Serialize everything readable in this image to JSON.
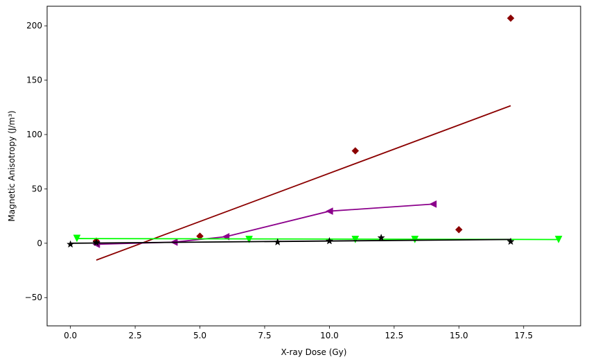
{
  "chart_data": {
    "type": "scatter",
    "xlabel": "X-ray Dose (Gy)",
    "ylabel": "Magnetic Anisotropy (J/m³)",
    "xlim": [
      -0.9,
      19.7
    ],
    "ylim": [
      -76,
      218
    ],
    "xticks": [
      0.0,
      2.5,
      5.0,
      7.5,
      10.0,
      12.5,
      15.0,
      17.5
    ],
    "xtick_labels": [
      "0.0",
      "2.5",
      "5.0",
      "7.5",
      "10.0",
      "12.5",
      "15.0",
      "17.5"
    ],
    "yticks": [
      -50,
      0,
      50,
      100,
      150,
      200
    ],
    "ytick_labels": [
      "−50",
      "0",
      "50",
      "100",
      "150",
      "200"
    ],
    "grid": false,
    "series": [
      {
        "color": "#8b0000",
        "marker": "diamond",
        "connected": false,
        "points": [
          [
            1,
            2
          ],
          [
            5,
            6.5
          ],
          [
            11,
            85
          ],
          [
            15,
            12.5
          ],
          [
            17,
            207
          ]
        ],
        "fit": [
          [
            1,
            -15.5
          ],
          [
            17,
            126.5
          ]
        ]
      },
      {
        "color": "#8b008b",
        "marker": "triangle-left",
        "connected": true,
        "points": [
          [
            1,
            -1
          ],
          [
            4,
            1
          ],
          [
            6,
            6
          ],
          [
            10,
            29.5
          ],
          [
            14,
            36
          ]
        ],
        "fit": null
      },
      {
        "color": "#00ff00",
        "marker": "triangle-down",
        "connected": false,
        "points": [
          [
            0.25,
            4.5
          ],
          [
            6.9,
            3.5
          ],
          [
            11,
            3.5
          ],
          [
            13.3,
            3.5
          ],
          [
            18.85,
            3.5
          ]
        ],
        "fit": [
          [
            0.25,
            4.3
          ],
          [
            18.85,
            3.4
          ]
        ]
      },
      {
        "color": "#000000",
        "marker": "star",
        "connected": false,
        "points": [
          [
            0,
            -1
          ],
          [
            1,
            0.5
          ],
          [
            8,
            1
          ],
          [
            10,
            2
          ],
          [
            12,
            5
          ],
          [
            17,
            1.5
          ]
        ],
        "fit": [
          [
            0,
            0
          ],
          [
            17,
            3.5
          ]
        ]
      }
    ]
  }
}
